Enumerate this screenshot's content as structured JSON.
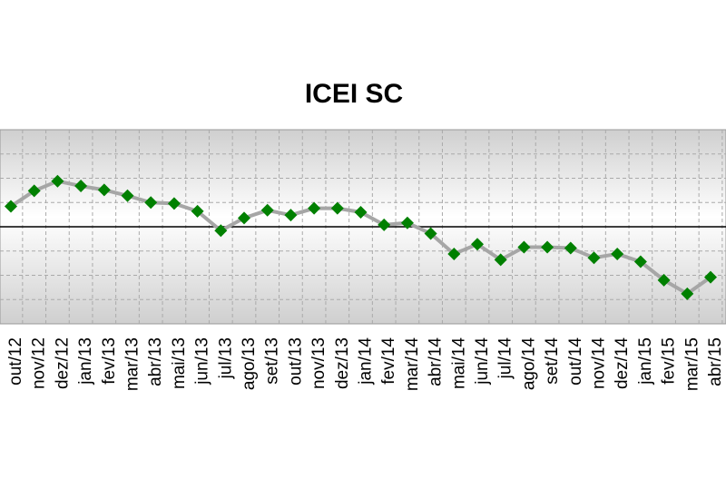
{
  "chart_data": {
    "type": "line",
    "title": "ICEI SC",
    "categories": [
      "out/12",
      "nov/12",
      "dez/12",
      "jan/13",
      "fev/13",
      "mar/13",
      "abr/13",
      "mai/13",
      "jun/13",
      "jul/13",
      "ago/13",
      "set/13",
      "out/13",
      "nov/13",
      "dez/13",
      "jan/14",
      "fev/14",
      "mar/14",
      "abr/14",
      "mai/14",
      "jun/14",
      "jul/14",
      "ago/14",
      "set/14",
      "out/14",
      "nov/14",
      "dez/14",
      "jan/15",
      "fev/15",
      "mar/15",
      "abr/15"
    ],
    "series": [
      {
        "color": "#008000",
        "line_color": "#a6a6a6",
        "values": [
          52.1,
          53.7,
          54.7,
          54.2,
          53.8,
          53.2,
          52.5,
          52.4,
          51.6,
          49.6,
          50.9,
          51.7,
          51.2,
          51.9,
          51.9,
          51.5,
          50.2,
          50.4,
          49.3,
          47.2,
          48.2,
          46.6,
          47.9,
          47.9,
          47.8,
          46.8,
          47.2,
          46.4,
          44.5,
          43.1,
          44.8
        ]
      }
    ],
    "ylim": [
      40,
      60
    ],
    "reference": 50,
    "grid": true
  }
}
